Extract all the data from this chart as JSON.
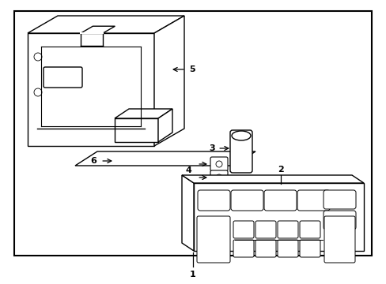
{
  "background_color": "#ffffff",
  "border_color": "#000000",
  "line_color": "#000000",
  "text_color": "#000000",
  "lw": 1.0,
  "fig_w": 4.89,
  "fig_h": 3.6,
  "dpi": 100
}
